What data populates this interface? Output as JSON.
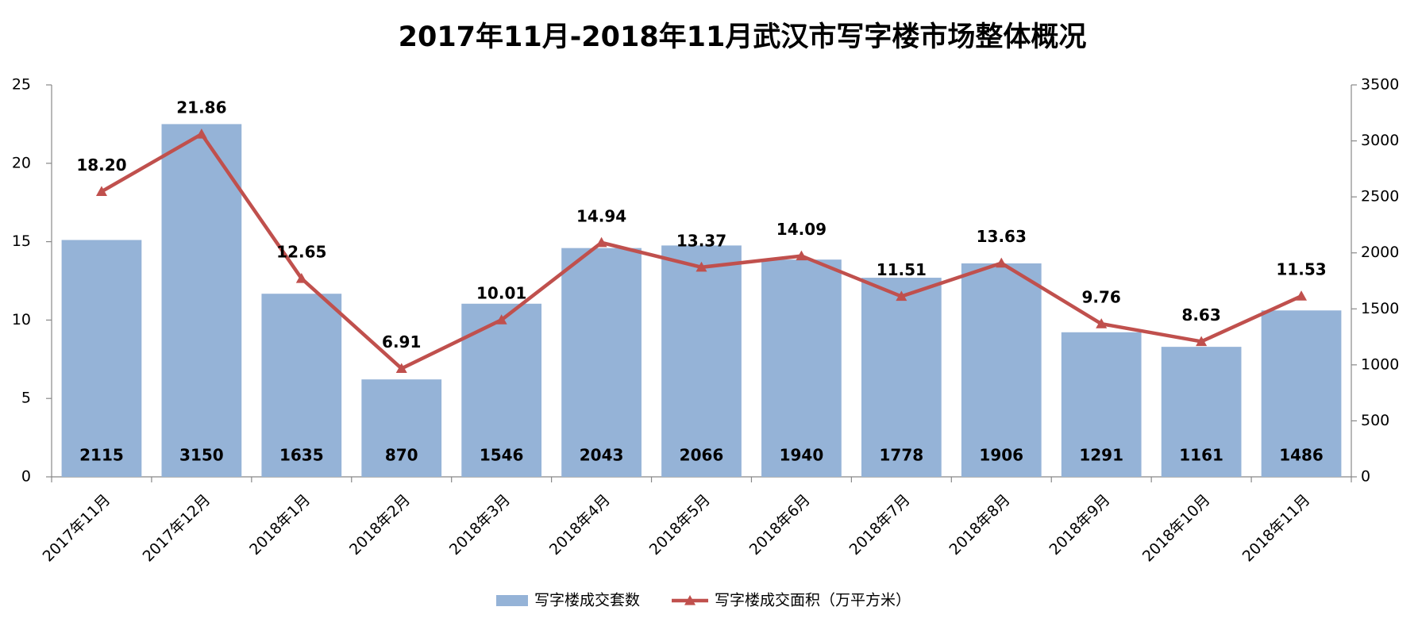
{
  "chart_data": {
    "type": "bar",
    "title": "2017年11月-2018年11月武汉市写字楼市场整体概况",
    "categories": [
      "2017年11月",
      "2017年12月",
      "2018年1月",
      "2018年2月",
      "2018年3月",
      "2018年4月",
      "2018年5月",
      "2018年6月",
      "2018年7月",
      "2018年8月",
      "2018年9月",
      "2018年10月",
      "2018年11月"
    ],
    "series": [
      {
        "name": "写字楼成交套数",
        "type": "bar",
        "axis": "y2",
        "color": "#95b3d7",
        "values": [
          2115,
          3150,
          1635,
          870,
          1546,
          2043,
          2066,
          1940,
          1778,
          1906,
          1291,
          1161,
          1486
        ]
      },
      {
        "name": "写字楼成交面积（万平方米）",
        "type": "line",
        "axis": "y",
        "color": "#c0504d",
        "values": [
          18.2,
          21.86,
          12.65,
          6.91,
          10.01,
          14.94,
          13.37,
          14.09,
          11.51,
          13.63,
          9.76,
          8.63,
          11.53
        ],
        "value_labels": [
          "18.20",
          "21.86",
          "12.65",
          "6.91",
          "10.01",
          "14.94",
          "13.37",
          "14.09",
          "11.51",
          "13.63",
          "9.76",
          "8.63",
          "11.53"
        ]
      }
    ],
    "ylim": [
      0,
      25
    ],
    "yticks": [
      0,
      5,
      10,
      15,
      20,
      25
    ],
    "y2lim": [
      0,
      3500
    ],
    "y2ticks": [
      0,
      500,
      1000,
      1500,
      2000,
      2500,
      3000,
      3500
    ],
    "legend": "bottom"
  }
}
